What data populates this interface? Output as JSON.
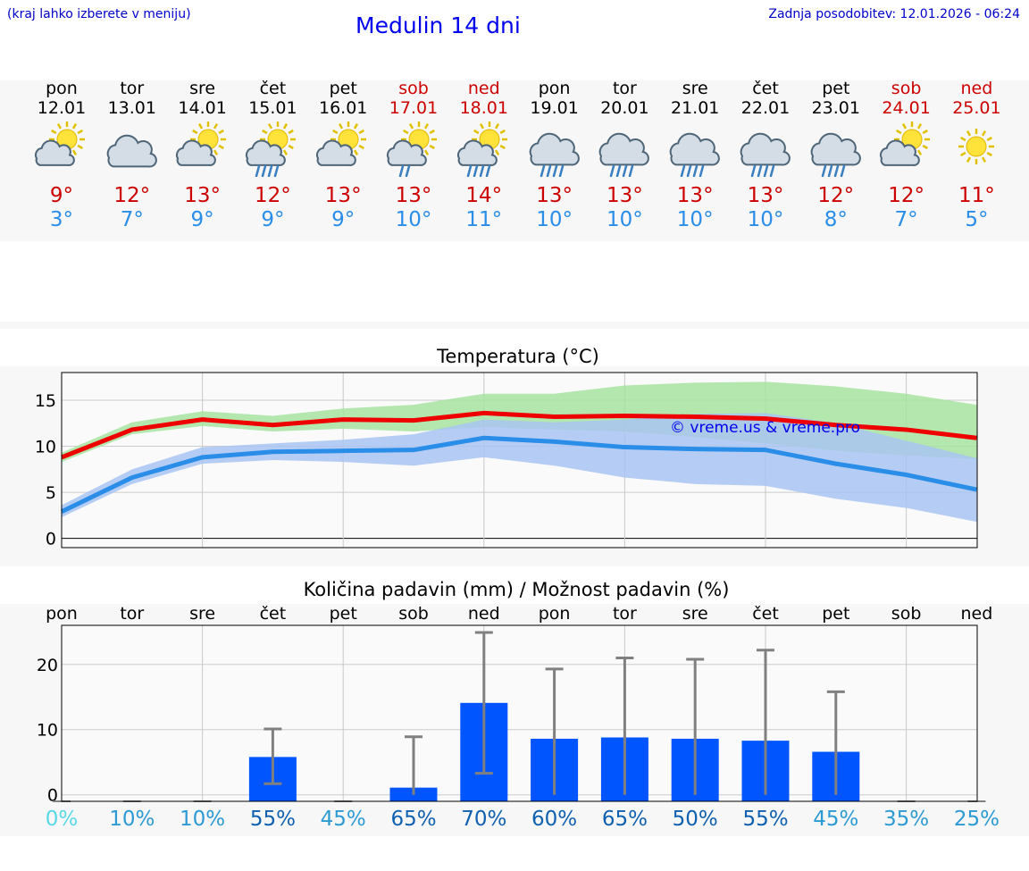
{
  "header": {
    "hint": "(kraj lahko izberete v meniju)",
    "title": "Medulin 14 dni",
    "updated": "Zadnja posodobitev: 12.01.2026 - 06:24"
  },
  "days": [
    {
      "name": "pon",
      "date": "12.01",
      "icon": "sun-cloud-icon",
      "max": "9°",
      "min": "3°",
      "weekend": false
    },
    {
      "name": "tor",
      "date": "13.01",
      "icon": "cloud-icon",
      "max": "12°",
      "min": "7°",
      "weekend": false
    },
    {
      "name": "sre",
      "date": "14.01",
      "icon": "sun-cloud-icon",
      "max": "13°",
      "min": "9°",
      "weekend": false
    },
    {
      "name": "čet",
      "date": "15.01",
      "icon": "sun-cloud-rain-icon",
      "max": "12°",
      "min": "9°",
      "weekend": false
    },
    {
      "name": "pet",
      "date": "16.01",
      "icon": "sun-cloud-icon",
      "max": "13°",
      "min": "9°",
      "weekend": false
    },
    {
      "name": "sob",
      "date": "17.01",
      "icon": "sun-cloud-light-rain-icon",
      "max": "13°",
      "min": "10°",
      "weekend": true
    },
    {
      "name": "ned",
      "date": "18.01",
      "icon": "sun-cloud-rain-icon",
      "max": "14°",
      "min": "11°",
      "weekend": true
    },
    {
      "name": "pon",
      "date": "19.01",
      "icon": "cloud-rain-icon",
      "max": "13°",
      "min": "10°",
      "weekend": false
    },
    {
      "name": "tor",
      "date": "20.01",
      "icon": "cloud-rain-icon",
      "max": "13°",
      "min": "10°",
      "weekend": false
    },
    {
      "name": "sre",
      "date": "21.01",
      "icon": "cloud-rain-icon",
      "max": "13°",
      "min": "10°",
      "weekend": false
    },
    {
      "name": "čet",
      "date": "22.01",
      "icon": "cloud-rain-icon",
      "max": "13°",
      "min": "10°",
      "weekend": false
    },
    {
      "name": "pet",
      "date": "23.01",
      "icon": "cloud-rain-icon",
      "max": "12°",
      "min": "8°",
      "weekend": false
    },
    {
      "name": "sob",
      "date": "24.01",
      "icon": "sun-cloud-icon",
      "max": "12°",
      "min": "7°",
      "weekend": true
    },
    {
      "name": "ned",
      "date": "25.01",
      "icon": "sun-icon",
      "max": "11°",
      "min": "5°",
      "weekend": true
    }
  ],
  "colors": {
    "max": "#ee0000",
    "min": "#2a8de8",
    "max_band": "#a6e3a0",
    "min_band": "#a8c4f2",
    "bar": "#0055ff",
    "error": "#808080",
    "watermark": "#0000ee"
  },
  "chart_data": [
    {
      "type": "line",
      "title": "Temperatura (°C)",
      "watermark": "© vreme.us & vreme.pro",
      "categories": [
        "pon",
        "tor",
        "sre",
        "čet",
        "pet",
        "sob",
        "ned",
        "pon",
        "tor",
        "sre",
        "čet",
        "pet",
        "sob",
        "ned"
      ],
      "ylim": [
        -1,
        18
      ],
      "yticks": [
        0,
        5,
        10,
        15
      ],
      "series": [
        {
          "name": "max",
          "values": [
            8.8,
            11.8,
            12.9,
            12.3,
            12.9,
            12.8,
            13.6,
            13.2,
            13.3,
            13.2,
            13.0,
            12.3,
            11.8,
            10.9
          ],
          "band_low": [
            8.3,
            11.3,
            12.2,
            11.6,
            11.9,
            11.6,
            12.1,
            11.8,
            11.6,
            11.0,
            10.3,
            9.5,
            9.0,
            8.6
          ],
          "band_high": [
            9.3,
            12.6,
            13.8,
            13.3,
            14.1,
            14.5,
            15.7,
            15.7,
            16.6,
            16.9,
            17.0,
            16.5,
            15.7,
            14.5
          ]
        },
        {
          "name": "min",
          "values": [
            2.9,
            6.6,
            8.8,
            9.4,
            9.5,
            9.6,
            10.9,
            10.5,
            9.9,
            9.7,
            9.6,
            8.1,
            6.9,
            5.3
          ],
          "band_low": [
            2.3,
            5.9,
            8.1,
            8.5,
            8.3,
            7.9,
            8.8,
            7.9,
            6.6,
            5.9,
            5.7,
            4.3,
            3.3,
            1.8
          ],
          "band_high": [
            3.6,
            7.5,
            9.9,
            10.3,
            10.7,
            11.3,
            12.9,
            12.6,
            12.9,
            13.5,
            13.6,
            12.5,
            10.6,
            8.7
          ]
        }
      ]
    },
    {
      "type": "bar",
      "title": "Količina padavin (mm) / Možnost padavin (%)",
      "categories": [
        "pon",
        "tor",
        "sre",
        "čet",
        "pet",
        "sob",
        "ned",
        "pon",
        "tor",
        "sre",
        "čet",
        "pet",
        "sob",
        "ned"
      ],
      "ylim": [
        -1,
        26
      ],
      "yticks": [
        0,
        10,
        20
      ],
      "values": [
        0,
        0,
        0,
        5.8,
        0,
        1.1,
        14.1,
        8.6,
        8.8,
        8.6,
        8.3,
        6.6,
        0,
        0
      ],
      "error_low": [
        0,
        0,
        0,
        1.7,
        0,
        0,
        3.3,
        0,
        0,
        0,
        0,
        0,
        0,
        0
      ],
      "error_high": [
        0,
        0,
        0,
        10.1,
        0,
        8.9,
        24.9,
        19.3,
        21.0,
        20.8,
        22.2,
        15.8,
        0,
        0
      ],
      "probability_labels": [
        "0%",
        "10%",
        "10%",
        "55%",
        "45%",
        "65%",
        "70%",
        "60%",
        "65%",
        "50%",
        "55%",
        "45%",
        "35%",
        "25%"
      ],
      "probability_colors": [
        "#5ad8e6",
        "#2d9ad4",
        "#2d9ad4",
        "#1060b0",
        "#2d9ad4",
        "#1060b0",
        "#1060b0",
        "#1060b0",
        "#1060b0",
        "#1060b0",
        "#1060b0",
        "#2d9ad4",
        "#2d9ad4",
        "#2d9ad4"
      ]
    }
  ]
}
